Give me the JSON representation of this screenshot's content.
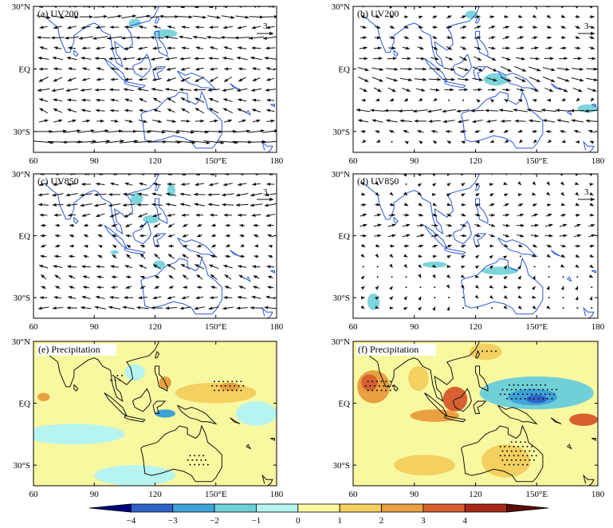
{
  "chart_data": [
    {
      "id": "a",
      "type": "vector_map",
      "panel_label": "(a) UV200",
      "reference_vector": {
        "value": "3",
        "u": 3,
        "v": 0
      },
      "xlim": [
        60,
        180
      ],
      "ylim": [
        -40,
        30
      ],
      "x_ticks": [
        {
          "value": 60,
          "label": "60"
        },
        {
          "value": 90,
          "label": "90"
        },
        {
          "value": 120,
          "label": "120"
        },
        {
          "value": 150,
          "label": "150°E"
        },
        {
          "value": 180,
          "label": "180"
        }
      ],
      "y_ticks": [
        {
          "value": 30,
          "label": "30°N"
        },
        {
          "value": 0,
          "label": "EQ"
        },
        {
          "value": -30,
          "label": "30°S"
        }
      ],
      "shading": [
        {
          "lon": 110,
          "lat": 22,
          "rlon": 3,
          "rlat": 2,
          "level": -1.5
        },
        {
          "lon": 125,
          "lat": 17,
          "rlon": 6,
          "rlat": 2,
          "level": -1.5
        }
      ],
      "wind_field": [
        {
          "lat": 30,
          "u": -1.5,
          "v": 0
        },
        {
          "lat": 25,
          "u": 2.5,
          "v": 0
        },
        {
          "lat": 20,
          "u": -1.5,
          "v": 0
        },
        {
          "lat": 15,
          "u": -2.5,
          "v": 0
        },
        {
          "lat": 10,
          "u": -1.5,
          "v": 0
        },
        {
          "lat": 5,
          "u": -2.0,
          "v": 0
        },
        {
          "lat": 0,
          "u": -1.5,
          "v": 0
        },
        {
          "lat": -5,
          "u": -1.5,
          "v": -0.5
        },
        {
          "lat": -10,
          "u": -2.0,
          "v": 0
        },
        {
          "lat": -15,
          "u": -1.5,
          "v": 0.5
        },
        {
          "lat": -20,
          "u": -1.5,
          "v": 0.5
        },
        {
          "lat": -25,
          "u": 1.5,
          "v": 0
        },
        {
          "lat": -30,
          "u": 3.0,
          "v": 0
        },
        {
          "lat": -35,
          "u": 3.5,
          "v": 0
        }
      ]
    },
    {
      "id": "b",
      "type": "vector_map",
      "panel_label": "(b) UV200",
      "reference_vector": {
        "value": "3",
        "u": 3,
        "v": 0
      },
      "xlim": [
        60,
        180
      ],
      "ylim": [
        -40,
        30
      ],
      "x_ticks": [
        {
          "value": 60,
          "label": "60"
        },
        {
          "value": 90,
          "label": "90"
        },
        {
          "value": 120,
          "label": "120"
        },
        {
          "value": 150,
          "label": "150°E"
        },
        {
          "value": 180,
          "label": "180"
        }
      ],
      "y_ticks": [
        {
          "value": 30,
          "label": "30°N"
        },
        {
          "value": 0,
          "label": "EQ"
        },
        {
          "value": -30,
          "label": "30°S"
        }
      ],
      "shading": [
        {
          "lon": 118,
          "lat": 26,
          "rlon": 3,
          "rlat": 2,
          "level": -1.5
        },
        {
          "lon": 130,
          "lat": -5,
          "rlon": 6,
          "rlat": 3,
          "level": -1.5
        },
        {
          "lon": 175,
          "lat": -19,
          "rlon": 5,
          "rlat": 2,
          "level": -1.5
        }
      ],
      "wind_field": [
        {
          "lat": 30,
          "u": 0.5,
          "v": 0
        },
        {
          "lat": 25,
          "u": 0.8,
          "v": 0
        },
        {
          "lat": 20,
          "u": 1.0,
          "v": 0
        },
        {
          "lat": 15,
          "u": 1.0,
          "v": 0
        },
        {
          "lat": 10,
          "u": 1.2,
          "v": -0.2
        },
        {
          "lat": 5,
          "u": 1.5,
          "v": -0.3
        },
        {
          "lat": 0,
          "u": 2.0,
          "v": -0.5
        },
        {
          "lat": -5,
          "u": 2.0,
          "v": -0.5
        },
        {
          "lat": -10,
          "u": 1.5,
          "v": -0.3
        },
        {
          "lat": -15,
          "u": -0.5,
          "v": 0
        },
        {
          "lat": -20,
          "u": -2.5,
          "v": 0
        },
        {
          "lat": -25,
          "u": -2.0,
          "v": 0
        },
        {
          "lat": -30,
          "u": -1.0,
          "v": 0
        },
        {
          "lat": -35,
          "u": -0.5,
          "v": 0
        }
      ]
    },
    {
      "id": "c",
      "type": "vector_map",
      "panel_label": "(c) UV850",
      "reference_vector": {
        "value": "3",
        "u": 3,
        "v": 0
      },
      "xlim": [
        60,
        180
      ],
      "ylim": [
        -40,
        30
      ],
      "x_ticks": [
        {
          "value": 60,
          "label": "60"
        },
        {
          "value": 90,
          "label": "90"
        },
        {
          "value": 120,
          "label": "120"
        },
        {
          "value": 150,
          "label": "150°E"
        },
        {
          "value": 180,
          "label": "180"
        }
      ],
      "y_ticks": [
        {
          "value": 30,
          "label": "30°N"
        },
        {
          "value": 0,
          "label": "EQ"
        },
        {
          "value": -30,
          "label": "30°S"
        }
      ],
      "shading": [
        {
          "lon": 111,
          "lat": 18,
          "rlon": 3,
          "rlat": 3,
          "level": -1.5
        },
        {
          "lon": 118,
          "lat": 8,
          "rlon": 4,
          "rlat": 2,
          "level": -1.5
        },
        {
          "lon": 128,
          "lat": 22,
          "rlon": 2,
          "rlat": 3,
          "level": -1.5
        },
        {
          "lon": 122,
          "lat": -14,
          "rlon": 3,
          "rlat": 2,
          "level": -1.5
        },
        {
          "lon": 100,
          "lat": -8,
          "rlon": 2,
          "rlat": 1,
          "level": -1.5
        }
      ],
      "wind_field": [
        {
          "lat": 30,
          "u": -1.0,
          "v": 0
        },
        {
          "lat": 25,
          "u": -1.5,
          "v": 0
        },
        {
          "lat": 20,
          "u": -2.0,
          "v": 0
        },
        {
          "lat": 15,
          "u": -2.0,
          "v": 0
        },
        {
          "lat": 10,
          "u": -1.5,
          "v": -0.3
        },
        {
          "lat": 5,
          "u": -1.0,
          "v": -0.3
        },
        {
          "lat": 0,
          "u": -1.0,
          "v": 0
        },
        {
          "lat": -5,
          "u": -0.8,
          "v": 0
        },
        {
          "lat": -10,
          "u": -1.0,
          "v": 0.5
        },
        {
          "lat": -15,
          "u": -1.5,
          "v": 0.5
        },
        {
          "lat": -20,
          "u": -1.0,
          "v": 0.5
        },
        {
          "lat": -25,
          "u": -1.0,
          "v": 0
        },
        {
          "lat": -30,
          "u": -1.5,
          "v": 0
        },
        {
          "lat": -35,
          "u": -2.0,
          "v": 0
        }
      ]
    },
    {
      "id": "d",
      "type": "vector_map",
      "panel_label": "(d) UV850",
      "reference_vector": {
        "value": "3",
        "u": 3,
        "v": 0
      },
      "xlim": [
        60,
        180
      ],
      "ylim": [
        -40,
        30
      ],
      "x_ticks": [
        {
          "value": 60,
          "label": "60"
        },
        {
          "value": 90,
          "label": "90"
        },
        {
          "value": 120,
          "label": "120"
        },
        {
          "value": 150,
          "label": "150°E"
        },
        {
          "value": 180,
          "label": "180"
        }
      ],
      "y_ticks": [
        {
          "value": 30,
          "label": "30°N"
        },
        {
          "value": 0,
          "label": "EQ"
        },
        {
          "value": -30,
          "label": "30°S"
        }
      ],
      "shading": [
        {
          "lon": 100,
          "lat": -14,
          "rlon": 6,
          "rlat": 1.5,
          "level": -1.5
        },
        {
          "lon": 132,
          "lat": -17,
          "rlon": 9,
          "rlat": 2,
          "level": -1.5
        },
        {
          "lon": 70,
          "lat": -32,
          "rlon": 3,
          "rlat": 4,
          "level": -1.5
        }
      ],
      "wind_field": [
        {
          "lat": 30,
          "u": 0.3,
          "v": 0
        },
        {
          "lat": 25,
          "u": 0.4,
          "v": 0
        },
        {
          "lat": 20,
          "u": 0.5,
          "v": 0
        },
        {
          "lat": 15,
          "u": 0.8,
          "v": 0
        },
        {
          "lat": 10,
          "u": 1.0,
          "v": 0
        },
        {
          "lat": 5,
          "u": 1.2,
          "v": 0
        },
        {
          "lat": 0,
          "u": 1.2,
          "v": 0
        },
        {
          "lat": -5,
          "u": 0.8,
          "v": 0
        },
        {
          "lat": -10,
          "u": 0.5,
          "v": 0
        },
        {
          "lat": -15,
          "u": 0.4,
          "v": 0
        },
        {
          "lat": -20,
          "u": 0.3,
          "v": 0
        },
        {
          "lat": -25,
          "u": 0.3,
          "v": 0
        },
        {
          "lat": -30,
          "u": 0.3,
          "v": 0
        },
        {
          "lat": -35,
          "u": 0.3,
          "v": 0
        }
      ]
    },
    {
      "id": "e",
      "type": "filled_contour_map",
      "panel_label": "(e) Precipitation",
      "xlim": [
        60,
        180
      ],
      "ylim": [
        -40,
        30
      ],
      "x_ticks": [
        {
          "value": 60,
          "label": "60"
        },
        {
          "value": 90,
          "label": "90"
        },
        {
          "value": 120,
          "label": "120"
        },
        {
          "value": 150,
          "label": "150°E"
        },
        {
          "value": 180,
          "label": "180"
        }
      ],
      "y_ticks": [
        {
          "value": 30,
          "label": "30°N"
        },
        {
          "value": 0,
          "label": "EQ"
        },
        {
          "value": -30,
          "label": "30°S"
        }
      ],
      "background_level": 0.5,
      "anomalies": [
        {
          "lon": 150,
          "lat": 5,
          "rlon": 20,
          "rlat": 5,
          "level": 1.5
        },
        {
          "lon": 157,
          "lat": 8,
          "rlon": 5,
          "rlat": 2,
          "level": 2.5
        },
        {
          "lon": 125,
          "lat": 10,
          "rlon": 3,
          "rlat": 3,
          "level": 2.5
        },
        {
          "lon": 65,
          "lat": 3,
          "rlon": 3,
          "rlat": 2,
          "level": 2.5
        },
        {
          "lon": 110,
          "lat": 15,
          "rlon": 5,
          "rlat": 4,
          "level": -0.5
        },
        {
          "lon": 125,
          "lat": -5,
          "rlon": 5,
          "rlat": 2,
          "level": -2.5
        },
        {
          "lon": 170,
          "lat": -5,
          "rlon": 10,
          "rlat": 6,
          "level": -0.5
        },
        {
          "lon": 80,
          "lat": -15,
          "rlon": 25,
          "rlat": 5,
          "level": -0.5
        },
        {
          "lon": 110,
          "lat": -35,
          "rlon": 20,
          "rlat": 5,
          "level": -0.5
        }
      ],
      "stipple_regions": [
        {
          "lon": 155,
          "lat": 8,
          "rlon": 9,
          "rlat": 4
        },
        {
          "lon": 140,
          "lat": -28,
          "rlon": 6,
          "rlat": 4
        },
        {
          "lon": 100,
          "lat": 12,
          "rlon": 4,
          "rlat": 3
        }
      ]
    },
    {
      "id": "f",
      "type": "filled_contour_map",
      "panel_label": "(f) Precipitation",
      "xlim": [
        60,
        180
      ],
      "ylim": [
        -40,
        30
      ],
      "x_ticks": [
        {
          "value": 60,
          "label": "60"
        },
        {
          "value": 90,
          "label": "90"
        },
        {
          "value": 120,
          "label": "120"
        },
        {
          "value": 150,
          "label": "150°E"
        },
        {
          "value": 180,
          "label": "180"
        }
      ],
      "y_ticks": [
        {
          "value": 30,
          "label": "30°N"
        },
        {
          "value": 0,
          "label": "EQ"
        },
        {
          "value": -30,
          "label": "30°S"
        }
      ],
      "background_level": 0.5,
      "anomalies": [
        {
          "lon": 150,
          "lat": 5,
          "rlon": 28,
          "rlat": 8,
          "level": -1.5
        },
        {
          "lon": 148,
          "lat": 3,
          "rlon": 12,
          "rlat": 4,
          "level": -2.5
        },
        {
          "lon": 150,
          "lat": 2,
          "rlon": 5,
          "rlat": 2,
          "level": -3.5
        },
        {
          "lon": 70,
          "lat": 8,
          "rlon": 8,
          "rlat": 8,
          "level": 2.5
        },
        {
          "lon": 68,
          "lat": 10,
          "rlon": 4,
          "rlat": 4,
          "level": 3.5
        },
        {
          "lon": 110,
          "lat": 2,
          "rlon": 6,
          "rlat": 6,
          "level": 3.5
        },
        {
          "lon": 100,
          "lat": -6,
          "rlon": 12,
          "rlat": 3,
          "level": 2.5
        },
        {
          "lon": 173,
          "lat": -8,
          "rlon": 7,
          "rlat": 3,
          "level": 3.5
        },
        {
          "lon": 125,
          "lat": 25,
          "rlon": 8,
          "rlat": 4,
          "level": 1.5
        },
        {
          "lon": 92,
          "lat": 12,
          "rlon": 5,
          "rlat": 6,
          "level": 1.5
        },
        {
          "lon": 135,
          "lat": -28,
          "rlon": 12,
          "rlat": 8,
          "level": 1.5
        },
        {
          "lon": 95,
          "lat": -30,
          "rlon": 15,
          "rlat": 5,
          "level": 1.5
        }
      ],
      "stipple_regions": [
        {
          "lon": 145,
          "lat": 5,
          "rlon": 15,
          "rlat": 5
        },
        {
          "lon": 72,
          "lat": 8,
          "rlon": 8,
          "rlat": 4
        },
        {
          "lon": 140,
          "lat": -25,
          "rlon": 10,
          "rlat": 7
        },
        {
          "lon": 125,
          "lat": 25,
          "rlon": 6,
          "rlat": 2
        }
      ]
    }
  ],
  "colorbar": {
    "colors": [
      "#000080",
      "#2f62c8",
      "#3ea2d8",
      "#6fd0d8",
      "#b6f4f0",
      "#f8f8a0",
      "#f4d060",
      "#e8a040",
      "#d86030",
      "#a82818",
      "#5a0a08"
    ],
    "tick_labels": [
      "−4",
      "−3",
      "−2",
      "−1",
      "0",
      "1",
      "2",
      "3",
      "4"
    ],
    "levels": [
      -4,
      -3,
      -2,
      -1,
      0,
      1,
      2,
      3,
      4
    ]
  },
  "map_colors": {
    "coast_upper": "#2a55d6",
    "coast_lower": "#111111",
    "arrow": "#111111"
  }
}
